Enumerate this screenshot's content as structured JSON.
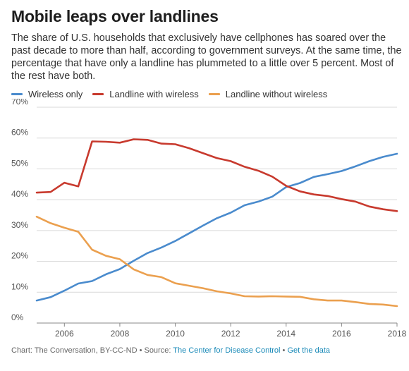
{
  "title": "Mobile leaps over landlines",
  "subtitle": "The share of U.S. households that exclusively have cellphones has soared over the past decade to more than half, according to government surveys. At the same time, the percentage that have only a landline has plummeted to a little over 5 percent. Most of the rest have both.",
  "footer": {
    "credit": "Chart: The Conversation, BY-CC-ND • Source: ",
    "source_link": "The Center for Disease Control",
    "separator": " • ",
    "data_link": "Get the data"
  },
  "chart_data": {
    "type": "line",
    "xlim": [
      2005,
      2018
    ],
    "ylim": [
      0,
      70
    ],
    "y_ticks": [
      0,
      10,
      20,
      30,
      40,
      50,
      60,
      70
    ],
    "y_tick_labels": [
      "0%",
      "10%",
      "20%",
      "30%",
      "40%",
      "50%",
      "60%",
      "70%"
    ],
    "x_ticks": [
      2006,
      2008,
      2010,
      2012,
      2014,
      2016,
      2018
    ],
    "x_tick_labels": [
      "2006",
      "2008",
      "2010",
      "2012",
      "2014",
      "2016",
      "2018"
    ],
    "grid": "horizontal",
    "legend": "top-left",
    "x": [
      2005.0,
      2005.5,
      2006.0,
      2006.5,
      2007.0,
      2007.5,
      2008.0,
      2008.5,
      2009.0,
      2009.5,
      2010.0,
      2010.5,
      2011.0,
      2011.5,
      2012.0,
      2012.5,
      2013.0,
      2013.5,
      2014.0,
      2014.5,
      2015.0,
      2015.5,
      2016.0,
      2016.5,
      2017.0,
      2017.5,
      2018.0
    ],
    "series": [
      {
        "name": "Wireless only",
        "color": "#4a8bcd",
        "values": [
          7.3,
          8.4,
          10.5,
          12.8,
          13.6,
          15.8,
          17.5,
          20.2,
          22.7,
          24.5,
          26.6,
          29.1,
          31.6,
          34.0,
          35.8,
          38.2,
          39.4,
          41.0,
          44.1,
          45.4,
          47.4,
          48.3,
          49.3,
          50.8,
          52.5,
          53.9,
          54.9
        ]
      },
      {
        "name": "Landline with wireless",
        "color": "#c83a2e",
        "values": [
          42.3,
          42.5,
          45.5,
          44.3,
          58.9,
          58.8,
          58.5,
          59.6,
          59.4,
          58.2,
          58.0,
          56.7,
          55.1,
          53.5,
          52.5,
          50.7,
          49.4,
          47.5,
          44.5,
          42.7,
          41.7,
          41.2,
          40.2,
          39.4,
          37.8,
          36.9,
          36.3
        ]
      },
      {
        "name": "Landline without wireless",
        "color": "#eba04f",
        "values": [
          34.5,
          32.4,
          30.9,
          29.6,
          23.8,
          21.8,
          20.7,
          17.4,
          15.6,
          14.9,
          12.9,
          12.1,
          11.3,
          10.3,
          9.6,
          8.7,
          8.6,
          8.7,
          8.6,
          8.5,
          7.7,
          7.3,
          7.3,
          6.8,
          6.2,
          6.0,
          5.5
        ]
      }
    ]
  }
}
